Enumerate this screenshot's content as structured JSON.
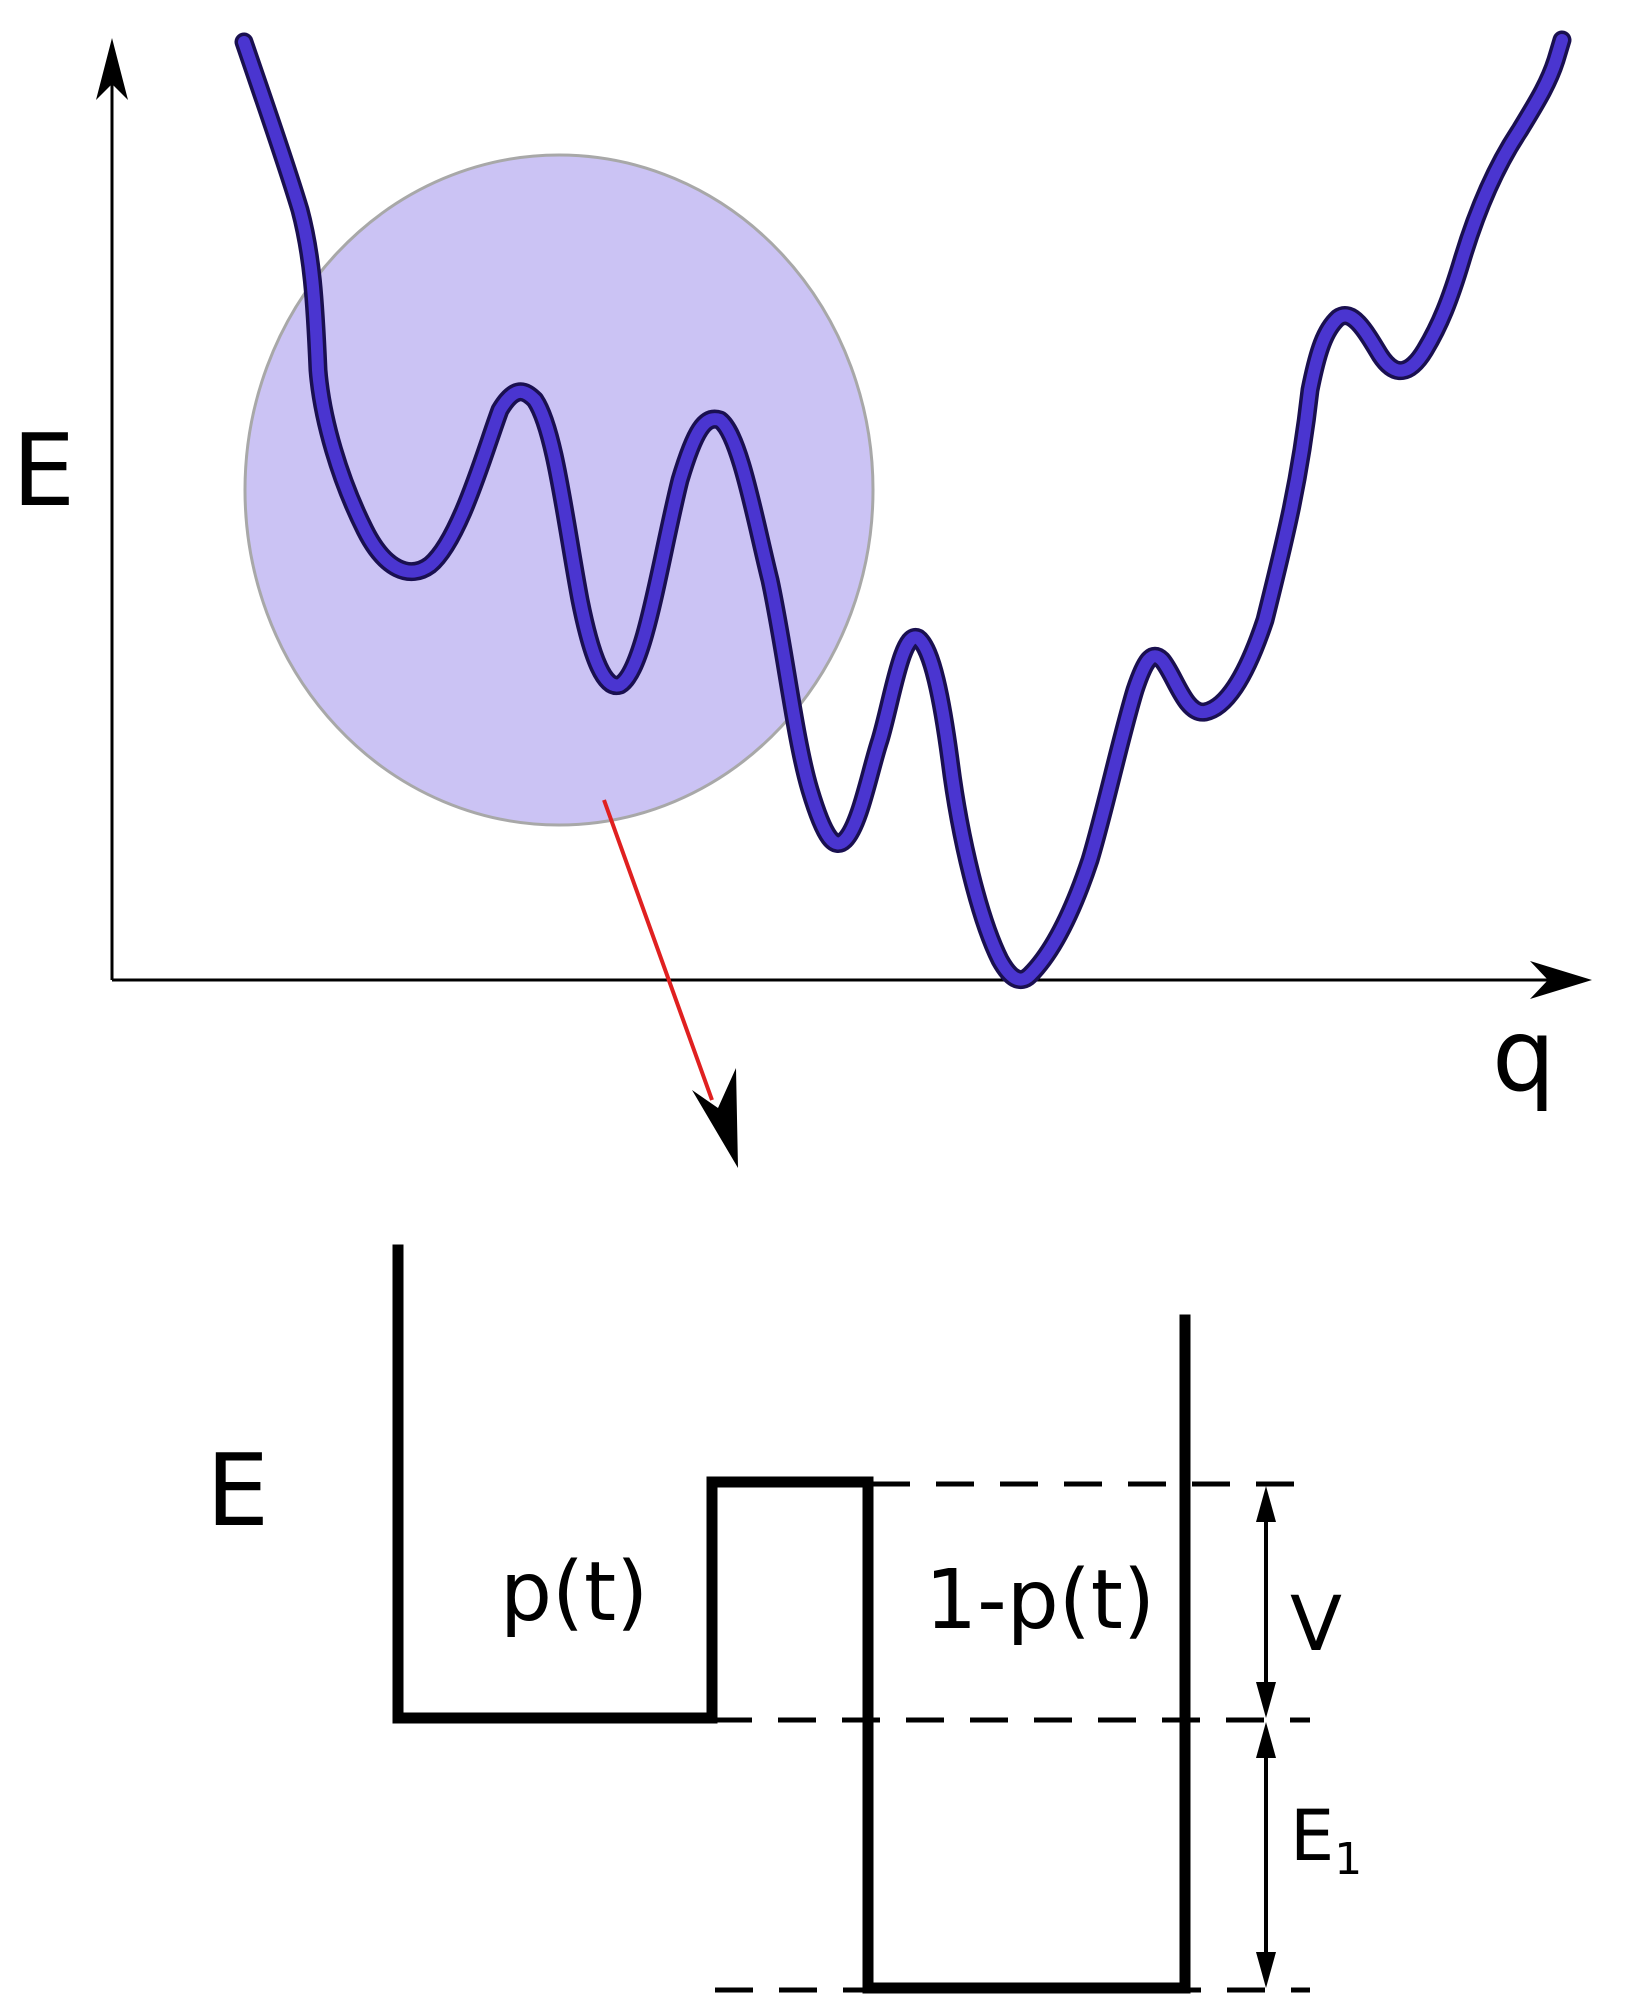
{
  "landscape": {
    "y_axis_label": "E",
    "x_axis_label": "q"
  },
  "well": {
    "y_axis_label": "E",
    "left_well_label": "p(t)",
    "right_well_label": "1-p(t)",
    "barrier_gap_label": "V",
    "depth_label_base": "E",
    "depth_label_sub": "1"
  },
  "colors": {
    "curve": "#4a35d0",
    "curve_outline": "#1a1050",
    "highlight_fill": "#cbc3f4",
    "highlight_stroke": "#a8a8a8",
    "zoom_arrow": "#e02020",
    "ink": "#000000"
  }
}
